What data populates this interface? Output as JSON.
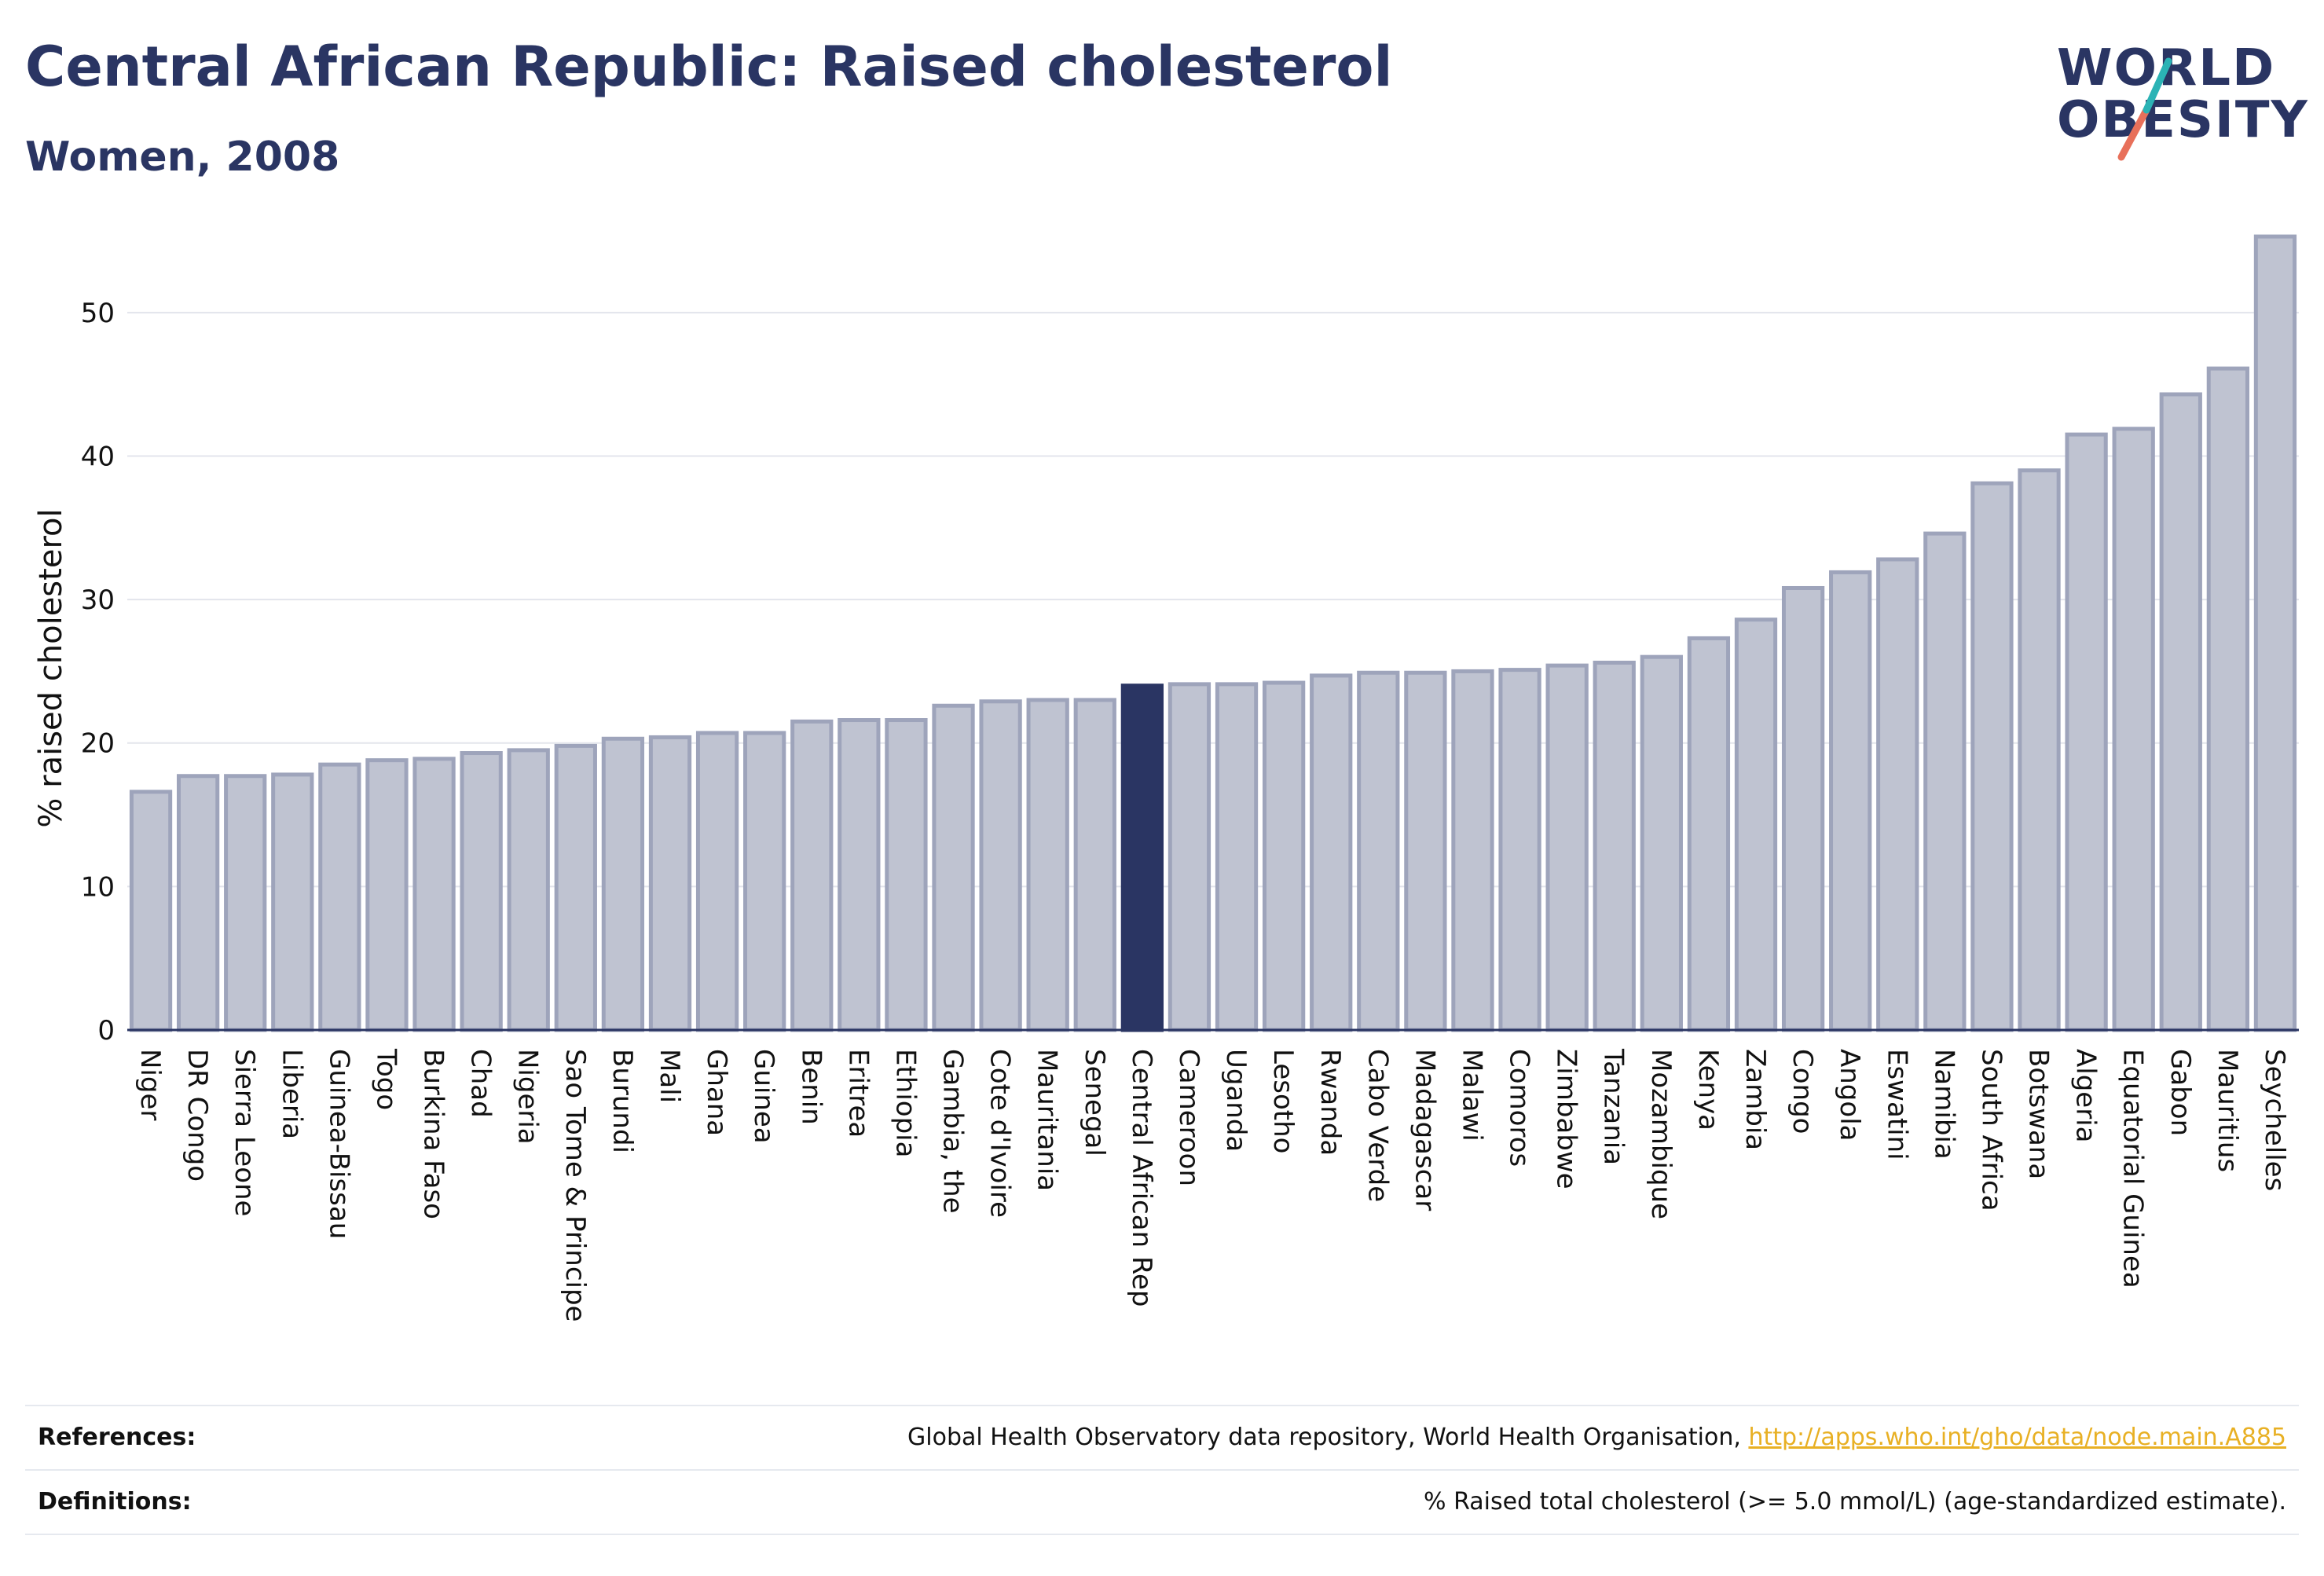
{
  "header": {
    "title": "Central African Republic: Raised cholesterol",
    "subtitle": "Women, 2008"
  },
  "logo": {
    "line1": "WORLD",
    "line2": "OBESITY"
  },
  "colors": {
    "bar": "#bfc3d1",
    "bar_border": "#9ea4bb",
    "highlight": "#2a3563",
    "grid": "#e3e5ec",
    "axis": "#2a3563",
    "logo_teal": "#2bb3b5",
    "logo_coral": "#e8705a"
  },
  "chart_data": {
    "type": "bar",
    "ylabel": "% raised cholesterol",
    "ylim": [
      0,
      57
    ],
    "yticks": [
      0,
      10,
      20,
      30,
      40,
      50
    ],
    "grid": true,
    "highlight": "Central African Rep",
    "categories": [
      "Niger",
      "DR Congo",
      "Sierra Leone",
      "Liberia",
      "Guinea-Bissau",
      "Togo",
      "Burkina Faso",
      "Chad",
      "Nigeria",
      "Sao Tome & Principe",
      "Burundi",
      "Mali",
      "Ghana",
      "Guinea",
      "Benin",
      "Eritrea",
      "Ethiopia",
      "Gambia, the",
      "Cote d'Ivoire",
      "Mauritania",
      "Senegal",
      "Central African Rep",
      "Cameroon",
      "Uganda",
      "Lesotho",
      "Rwanda",
      "Cabo Verde",
      "Madagascar",
      "Malawi",
      "Comoros",
      "Zimbabwe",
      "Tanzania",
      "Mozambique",
      "Kenya",
      "Zambia",
      "Congo",
      "Angola",
      "Eswatini",
      "Namibia",
      "South Africa",
      "Botswana",
      "Algeria",
      "Equatorial Guinea",
      "Gabon",
      "Mauritius",
      "Seychelles"
    ],
    "values": [
      16.6,
      17.7,
      17.7,
      17.8,
      18.5,
      18.8,
      18.9,
      19.3,
      19.5,
      19.8,
      20.3,
      20.4,
      20.7,
      20.7,
      21.5,
      21.6,
      21.6,
      22.6,
      22.9,
      23.0,
      23.0,
      24.0,
      24.1,
      24.1,
      24.2,
      24.7,
      24.9,
      24.9,
      25.0,
      25.1,
      25.4,
      25.6,
      26.0,
      27.3,
      28.6,
      30.8,
      31.9,
      32.8,
      34.6,
      38.1,
      39.0,
      41.5,
      41.9,
      44.3,
      46.1,
      55.3
    ]
  },
  "footer": {
    "references_label": "References:",
    "references_text": "Global Health Observatory data repository, World Health Organisation, ",
    "references_link": "http://apps.who.int/gho/data/node.main.A885",
    "definitions_label": "Definitions:",
    "definitions_text": "% Raised total cholesterol (>= 5.0 mmol/L) (age-standardized estimate)."
  }
}
